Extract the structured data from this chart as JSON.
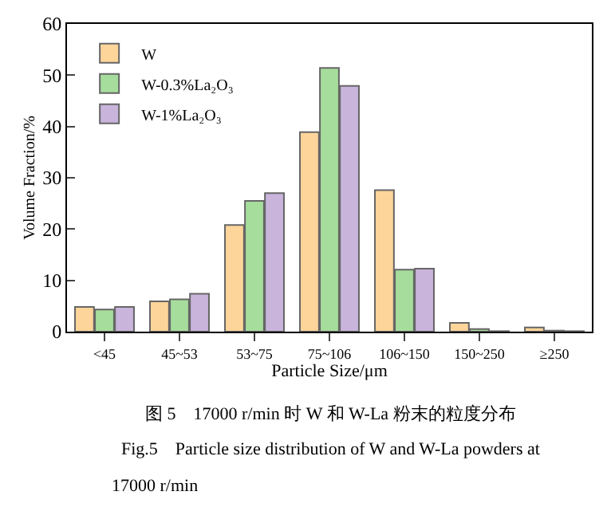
{
  "chart_data": {
    "type": "bar",
    "xlabel": "Particle Size/μm",
    "ylabel": "Volume Fraction/%",
    "categories": [
      "<45",
      "45~53",
      "53~75",
      "75~106",
      "106~150",
      "150~250",
      "≥250"
    ],
    "series": [
      {
        "name": "W",
        "color": "#fdd59a",
        "values": [
          4.8,
          5.9,
          20.8,
          38.9,
          27.6,
          1.7,
          0.8
        ]
      },
      {
        "name": "W-0.3%La₂O₃",
        "color": "#a6dd9c",
        "values": [
          4.3,
          6.3,
          25.5,
          51.4,
          12.1,
          0.5,
          0.2
        ]
      },
      {
        "name": "W-1%La₂O₃",
        "color": "#c9b4dc",
        "values": [
          4.8,
          7.4,
          27.0,
          47.9,
          12.3,
          0.1,
          0.1
        ]
      }
    ],
    "ylim": [
      0,
      60
    ],
    "yticks": [
      0,
      10,
      20,
      30,
      40,
      50,
      60
    ],
    "legend": "top left",
    "annotations": [
      "图 5    17000 r/min 时 W 和 W-La 粉末的粒度分布",
      "Fig.5    Particle size distribution of W and W-La powders at",
      "17000 r/min"
    ]
  }
}
